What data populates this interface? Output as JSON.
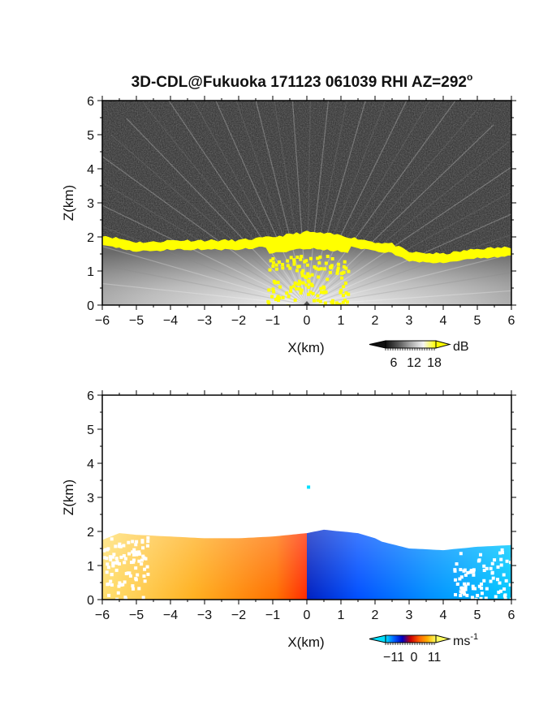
{
  "chart_data": [
    {
      "type": "heatmap",
      "title": "3D-CDL@Fukuoka 171123 061039 RHI AZ=292",
      "title_superscript": "o",
      "xlabel": "X(km)",
      "ylabel": "Z(km)",
      "xlim": [
        -6,
        6
      ],
      "ylim": [
        0,
        6
      ],
      "xticks": [
        "-6",
        "-5",
        "-4",
        "-3",
        "-2",
        "-1",
        "0",
        "1",
        "2",
        "3",
        "4",
        "5",
        "6"
      ],
      "yticks": [
        "0",
        "1",
        "2",
        "3",
        "4",
        "5",
        "6"
      ],
      "colorbar": {
        "unit": "dB",
        "ticks": [
          "6",
          "12",
          "18"
        ],
        "colors": [
          "#101010",
          "#555555",
          "#aaaaaa",
          "#f4f4f4",
          "#ffff00"
        ]
      },
      "layer_top_km": [
        [
          -6,
          1.95
        ],
        [
          -5.5,
          1.85
        ],
        [
          -5,
          1.75
        ],
        [
          -4.5,
          1.75
        ],
        [
          -4,
          1.8
        ],
        [
          -3,
          1.8
        ],
        [
          -2,
          1.8
        ],
        [
          -1,
          1.9
        ],
        [
          0,
          2.05
        ],
        [
          0.5,
          2.0
        ],
        [
          1,
          1.95
        ],
        [
          2,
          1.75
        ],
        [
          2.5,
          1.7
        ],
        [
          3,
          1.45
        ],
        [
          4,
          1.4
        ],
        [
          5,
          1.55
        ],
        [
          6,
          1.6
        ]
      ],
      "saturated_color": "#ffff00",
      "background_color": "#2a2a2a"
    },
    {
      "type": "heatmap",
      "xlabel": "X(km)",
      "ylabel": "Z(km)",
      "xlim": [
        -6,
        6
      ],
      "ylim": [
        0,
        6
      ],
      "xticks": [
        "-6",
        "-5",
        "-4",
        "-3",
        "-2",
        "-1",
        "0",
        "1",
        "2",
        "3",
        "4",
        "5",
        "6"
      ],
      "yticks": [
        "0",
        "1",
        "2",
        "3",
        "4",
        "5",
        "6"
      ],
      "colorbar": {
        "unit": "ms",
        "unit_superscript": "-1",
        "ticks": [
          "-11",
          "0",
          "11"
        ],
        "colors": [
          "#00e0ff",
          "#0060ff",
          "#0000c0",
          "#cc0000",
          "#ff6000",
          "#ffb000",
          "#ffff60"
        ]
      },
      "echo_top_km": [
        [
          -6,
          1.75
        ],
        [
          -5.5,
          1.95
        ],
        [
          -5,
          1.9
        ],
        [
          -4,
          1.85
        ],
        [
          -3,
          1.8
        ],
        [
          -2,
          1.8
        ],
        [
          -1,
          1.85
        ],
        [
          0,
          1.95
        ],
        [
          0.5,
          2.05
        ],
        [
          1,
          2.0
        ],
        [
          1.5,
          1.95
        ],
        [
          2,
          1.8
        ],
        [
          2.2,
          1.7
        ],
        [
          3,
          1.5
        ],
        [
          4,
          1.45
        ],
        [
          5,
          1.55
        ],
        [
          6,
          1.6
        ]
      ],
      "isolated_echo": {
        "x_km": 0.05,
        "z_km": 3.3,
        "color": "#00e0ff"
      },
      "velocity_side": {
        "left": "positive (warm)",
        "right": "negative (cool)"
      }
    }
  ]
}
